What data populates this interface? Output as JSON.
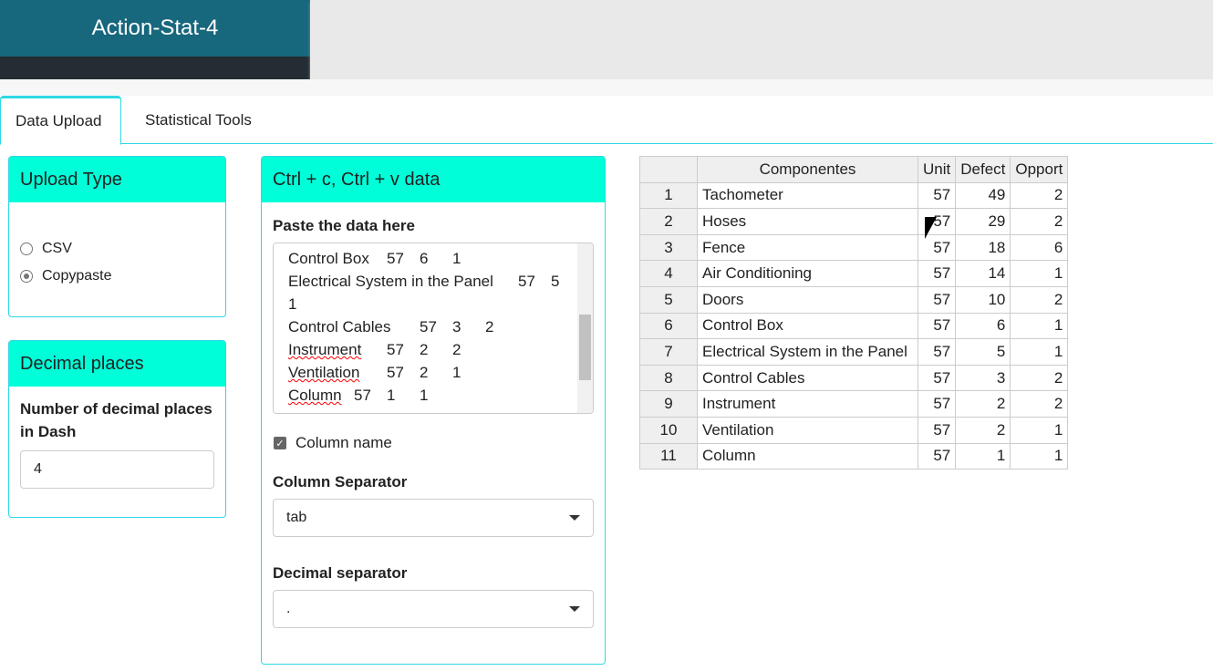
{
  "app": {
    "title": "Action-Stat-4"
  },
  "tabs": [
    "Data Upload",
    "Statistical Tools"
  ],
  "upload_type": {
    "title": "Upload Type",
    "options": [
      "CSV",
      "Copypaste"
    ],
    "selected": "Copypaste"
  },
  "decimal": {
    "title": "Decimal places",
    "label": "Number of decimal places in Dash",
    "value": "4"
  },
  "paste": {
    "title": "Ctrl + c, Ctrl + v data",
    "label": "Paste the data here",
    "lines": [
      "Control Box\t57\t6\t1",
      "Electrical System in the Panel\t57\t5\t1",
      "Control Cables\t57\t3\t2",
      "Instrument\t57\t2\t2",
      "Ventilation\t57\t2\t1",
      "Column\t57\t1\t1"
    ],
    "column_name_label": "Column name",
    "column_name_checked": true,
    "col_sep_label": "Column Separator",
    "col_sep_value": "tab",
    "dec_sep_label": "Decimal separator",
    "dec_sep_value": "."
  },
  "table": {
    "headers": [
      "",
      "Componentes",
      "Unit",
      "Defect",
      "Opport"
    ],
    "rows": [
      [
        "1",
        "Tachometer",
        "57",
        "49",
        "2"
      ],
      [
        "2",
        "Hoses",
        "57",
        "29",
        "2"
      ],
      [
        "3",
        "Fence",
        "57",
        "18",
        "6"
      ],
      [
        "4",
        "Air Conditioning",
        "57",
        "14",
        "1"
      ],
      [
        "5",
        "Doors",
        "57",
        "10",
        "2"
      ],
      [
        "6",
        "Control Box",
        "57",
        "6",
        "1"
      ],
      [
        "7",
        "Electrical System in the Panel",
        "57",
        "5",
        "1"
      ],
      [
        "8",
        "Control Cables",
        "57",
        "3",
        "2"
      ],
      [
        "9",
        "Instrument",
        "57",
        "2",
        "2"
      ],
      [
        "10",
        "Ventilation",
        "57",
        "2",
        "1"
      ],
      [
        "11",
        "Column",
        "57",
        "1",
        "1"
      ]
    ]
  }
}
